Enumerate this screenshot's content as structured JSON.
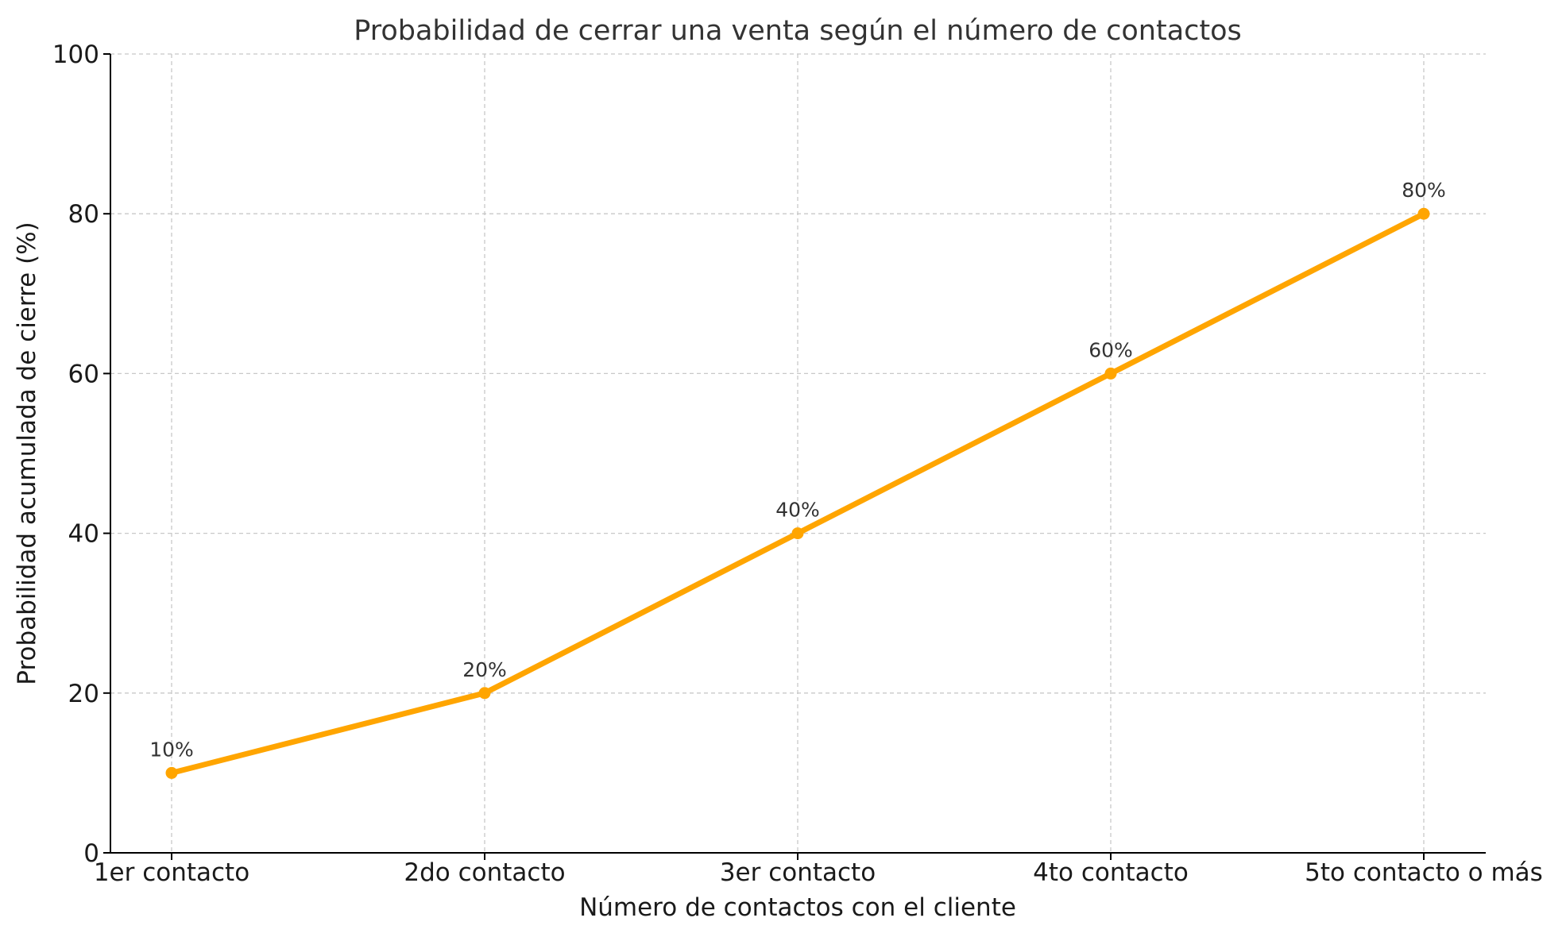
{
  "chart_data": {
    "type": "line",
    "title": "Probabilidad de cerrar una venta según el número de contactos",
    "xlabel": "Número de contactos con el cliente",
    "ylabel": "Probabilidad acumulada de cierre (%)",
    "categories": [
      "1er contacto",
      "2do contacto",
      "3er contacto",
      "4to contacto",
      "5to contacto o más"
    ],
    "series": [
      {
        "values": [
          10,
          20,
          40,
          60,
          80
        ],
        "color": "#FFA500",
        "marker": "circle"
      }
    ],
    "data_labels": [
      "10%",
      "20%",
      "40%",
      "60%",
      "80%"
    ],
    "ylim": [
      0,
      100
    ],
    "yticks": [
      0,
      20,
      40,
      60,
      80,
      100
    ],
    "grid": true,
    "legend": "none"
  }
}
